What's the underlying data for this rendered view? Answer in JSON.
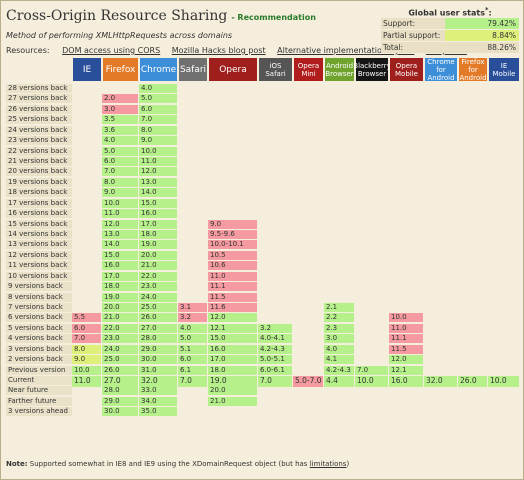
{
  "title": "Cross-Origin Resource Sharing",
  "status": "- Recommendation",
  "description": "Method of performing XMLHttpRequests across domains",
  "resources": {
    "label": "Resources:",
    "links": [
      "DOM access using CORS",
      "Mozilla Hacks blog post",
      "Alternative implementation by IE8",
      "has.js test"
    ]
  },
  "stats": {
    "title": "Global user stats",
    "title_sup": "*",
    "title_suffix": ":",
    "rows": [
      {
        "label": "Support:",
        "value": "79.42%"
      },
      {
        "label": "Partial support:",
        "value": "8.84%"
      },
      {
        "label": "Total:",
        "value": "88.26%"
      }
    ]
  },
  "colors": {
    "supported": "#b6f08a",
    "unsupported": "#f59aa0",
    "partial": "#dff07a",
    "ie": "#294e9a",
    "firefox": "#e27a28",
    "chrome": "#3c8ed8",
    "safari": "#707070",
    "opera": "#9e1f1c",
    "ios": "#555555",
    "opera_mini": "#b01d1d",
    "android": "#6fa32d",
    "blackberry": "#151515",
    "opera_mobile": "#9e1f1c",
    "chrome_android": "#3c8ed8",
    "firefox_android": "#e27a28",
    "ie_mobile": "#294e9a"
  },
  "browsers": [
    {
      "name": "IE",
      "icon": "ie"
    },
    {
      "name": "Firefox",
      "icon": "firefox"
    },
    {
      "name": "Chrome",
      "icon": "chrome"
    },
    {
      "name": "Safari",
      "icon": "safari"
    },
    {
      "name": "Opera",
      "icon": "opera"
    },
    {
      "name": "iOS Safari",
      "icon": "ios"
    },
    {
      "name": "Opera Mini",
      "icon": "opera_mini"
    },
    {
      "name": "Android Browser",
      "icon": "android"
    },
    {
      "name": "Blackberry Browser",
      "icon": "blackberry"
    },
    {
      "name": "Opera Mobile",
      "icon": "opera_mobile"
    },
    {
      "name": "Chrome for Android",
      "icon": "chrome_android"
    },
    {
      "name": "Firefox for Android",
      "icon": "firefox_android"
    },
    {
      "name": "IE Mobile",
      "icon": "ie_mobile"
    }
  ],
  "rows": [
    {
      "label": "28 versions back",
      "cells": [
        null,
        null,
        {
          "v": "4.0",
          "s": "y"
        }
      ]
    },
    {
      "label": "27 versions back",
      "cells": [
        null,
        {
          "v": "2.0",
          "s": "n"
        },
        {
          "v": "5.0",
          "s": "y"
        }
      ]
    },
    {
      "label": "26 versions back",
      "cells": [
        null,
        {
          "v": "3.0",
          "s": "n"
        },
        {
          "v": "6.0",
          "s": "y"
        }
      ]
    },
    {
      "label": "25 versions back",
      "cells": [
        null,
        {
          "v": "3.5",
          "s": "y"
        },
        {
          "v": "7.0",
          "s": "y"
        }
      ]
    },
    {
      "label": "24 versions back",
      "cells": [
        null,
        {
          "v": "3.6",
          "s": "y"
        },
        {
          "v": "8.0",
          "s": "y"
        }
      ]
    },
    {
      "label": "23 versions back",
      "cells": [
        null,
        {
          "v": "4.0",
          "s": "y"
        },
        {
          "v": "9.0",
          "s": "y"
        }
      ]
    },
    {
      "label": "22 versions back",
      "cells": [
        null,
        {
          "v": "5.0",
          "s": "y"
        },
        {
          "v": "10.0",
          "s": "y"
        }
      ]
    },
    {
      "label": "21 versions back",
      "cells": [
        null,
        {
          "v": "6.0",
          "s": "y"
        },
        {
          "v": "11.0",
          "s": "y"
        }
      ]
    },
    {
      "label": "20 versions back",
      "cells": [
        null,
        {
          "v": "7.0",
          "s": "y"
        },
        {
          "v": "12.0",
          "s": "y"
        }
      ]
    },
    {
      "label": "19 versions back",
      "cells": [
        null,
        {
          "v": "8.0",
          "s": "y"
        },
        {
          "v": "13.0",
          "s": "y"
        }
      ]
    },
    {
      "label": "18 versions back",
      "cells": [
        null,
        {
          "v": "9.0",
          "s": "y"
        },
        {
          "v": "14.0",
          "s": "y"
        }
      ]
    },
    {
      "label": "17 versions back",
      "cells": [
        null,
        {
          "v": "10.0",
          "s": "y"
        },
        {
          "v": "15.0",
          "s": "y"
        }
      ]
    },
    {
      "label": "16 versions back",
      "cells": [
        null,
        {
          "v": "11.0",
          "s": "y"
        },
        {
          "v": "16.0",
          "s": "y"
        }
      ]
    },
    {
      "label": "15 versions back",
      "cells": [
        null,
        {
          "v": "12.0",
          "s": "y"
        },
        {
          "v": "17.0",
          "s": "y"
        },
        null,
        {
          "v": "9.0",
          "s": "n"
        }
      ]
    },
    {
      "label": "14 versions back",
      "cells": [
        null,
        {
          "v": "13.0",
          "s": "y"
        },
        {
          "v": "18.0",
          "s": "y"
        },
        null,
        {
          "v": "9.5-9.6",
          "s": "n"
        }
      ]
    },
    {
      "label": "13 versions back",
      "cells": [
        null,
        {
          "v": "14.0",
          "s": "y"
        },
        {
          "v": "19.0",
          "s": "y"
        },
        null,
        {
          "v": "10.0-10.1",
          "s": "n"
        }
      ]
    },
    {
      "label": "12 versions back",
      "cells": [
        null,
        {
          "v": "15.0",
          "s": "y"
        },
        {
          "v": "20.0",
          "s": "y"
        },
        null,
        {
          "v": "10.5",
          "s": "n"
        }
      ]
    },
    {
      "label": "11 versions back",
      "cells": [
        null,
        {
          "v": "16.0",
          "s": "y"
        },
        {
          "v": "21.0",
          "s": "y"
        },
        null,
        {
          "v": "10.6",
          "s": "n"
        }
      ]
    },
    {
      "label": "10 versions back",
      "cells": [
        null,
        {
          "v": "17.0",
          "s": "y"
        },
        {
          "v": "22.0",
          "s": "y"
        },
        null,
        {
          "v": "11.0",
          "s": "n"
        }
      ]
    },
    {
      "label": "9 versions back",
      "cells": [
        null,
        {
          "v": "18.0",
          "s": "y"
        },
        {
          "v": "23.0",
          "s": "y"
        },
        null,
        {
          "v": "11.1",
          "s": "n"
        }
      ]
    },
    {
      "label": "8 versions back",
      "cells": [
        null,
        {
          "v": "19.0",
          "s": "y"
        },
        {
          "v": "24.0",
          "s": "y"
        },
        null,
        {
          "v": "11.5",
          "s": "n"
        }
      ]
    },
    {
      "label": "7 versions back",
      "cells": [
        null,
        {
          "v": "20.0",
          "s": "y"
        },
        {
          "v": "25.0",
          "s": "y"
        },
        {
          "v": "3.1",
          "s": "n"
        },
        {
          "v": "11.6",
          "s": "n"
        },
        null,
        null,
        {
          "v": "2.1",
          "s": "y"
        }
      ]
    },
    {
      "label": "6 versions back",
      "cells": [
        {
          "v": "5.5",
          "s": "n"
        },
        {
          "v": "21.0",
          "s": "y"
        },
        {
          "v": "26.0",
          "s": "y"
        },
        {
          "v": "3.2",
          "s": "n"
        },
        {
          "v": "12.0",
          "s": "y"
        },
        null,
        null,
        {
          "v": "2.2",
          "s": "y"
        },
        null,
        {
          "v": "10.0",
          "s": "n"
        }
      ]
    },
    {
      "label": "5 versions back",
      "cells": [
        {
          "v": "6.0",
          "s": "n"
        },
        {
          "v": "22.0",
          "s": "y"
        },
        {
          "v": "27.0",
          "s": "y"
        },
        {
          "v": "4.0",
          "s": "y"
        },
        {
          "v": "12.1",
          "s": "y"
        },
        {
          "v": "3.2",
          "s": "y"
        },
        null,
        {
          "v": "2.3",
          "s": "y"
        },
        null,
        {
          "v": "11.0",
          "s": "n"
        }
      ]
    },
    {
      "label": "4 versions back",
      "cells": [
        {
          "v": "7.0",
          "s": "n"
        },
        {
          "v": "23.0",
          "s": "y"
        },
        {
          "v": "28.0",
          "s": "y"
        },
        {
          "v": "5.0",
          "s": "y"
        },
        {
          "v": "15.0",
          "s": "y"
        },
        {
          "v": "4.0-4.1",
          "s": "y"
        },
        null,
        {
          "v": "3.0",
          "s": "y"
        },
        null,
        {
          "v": "11.1",
          "s": "n"
        }
      ]
    },
    {
      "label": "3 versions back",
      "cells": [
        {
          "v": "8.0",
          "s": "a"
        },
        {
          "v": "24.0",
          "s": "y"
        },
        {
          "v": "29.0",
          "s": "y"
        },
        {
          "v": "5.1",
          "s": "y"
        },
        {
          "v": "16.0",
          "s": "y"
        },
        {
          "v": "4.2-4.3",
          "s": "y"
        },
        null,
        {
          "v": "4.0",
          "s": "y"
        },
        null,
        {
          "v": "11.5",
          "s": "n"
        }
      ]
    },
    {
      "label": "2 versions back",
      "cells": [
        {
          "v": "9.0",
          "s": "a"
        },
        {
          "v": "25.0",
          "s": "y"
        },
        {
          "v": "30.0",
          "s": "y"
        },
        {
          "v": "6.0",
          "s": "y"
        },
        {
          "v": "17.0",
          "s": "y"
        },
        {
          "v": "5.0-5.1",
          "s": "y"
        },
        null,
        {
          "v": "4.1",
          "s": "y"
        },
        null,
        {
          "v": "12.0",
          "s": "y"
        }
      ]
    },
    {
      "label": "Previous version",
      "cells": [
        {
          "v": "10.0",
          "s": "y"
        },
        {
          "v": "26.0",
          "s": "y"
        },
        {
          "v": "31.0",
          "s": "y"
        },
        {
          "v": "6.1",
          "s": "y"
        },
        {
          "v": "18.0",
          "s": "y"
        },
        {
          "v": "6.0-6.1",
          "s": "y"
        },
        null,
        {
          "v": "4.2-4.3",
          "s": "y"
        },
        {
          "v": "7.0",
          "s": "y"
        },
        {
          "v": "12.1",
          "s": "y"
        }
      ]
    },
    {
      "label": "Current",
      "current": true,
      "cells": [
        {
          "v": "11.0",
          "s": "y"
        },
        {
          "v": "27.0",
          "s": "y"
        },
        {
          "v": "32.0",
          "s": "y"
        },
        {
          "v": "7.0",
          "s": "y"
        },
        {
          "v": "19.0",
          "s": "y"
        },
        {
          "v": "7.0",
          "s": "y"
        },
        {
          "v": "5.0-7.0",
          "s": "n"
        },
        {
          "v": "4.4",
          "s": "y"
        },
        {
          "v": "10.0",
          "s": "y"
        },
        {
          "v": "16.0",
          "s": "y"
        },
        {
          "v": "32.0",
          "s": "y"
        },
        {
          "v": "26.0",
          "s": "y"
        },
        {
          "v": "10.0",
          "s": "y"
        }
      ]
    },
    {
      "label": "Near future",
      "cells": [
        null,
        {
          "v": "28.0",
          "s": "y"
        },
        {
          "v": "33.0",
          "s": "y"
        },
        null,
        {
          "v": "20.0",
          "s": "y"
        }
      ]
    },
    {
      "label": "Farther future",
      "cells": [
        null,
        {
          "v": "29.0",
          "s": "y"
        },
        {
          "v": "34.0",
          "s": "y"
        },
        null,
        {
          "v": "21.0",
          "s": "y"
        }
      ]
    },
    {
      "label": "3 versions ahead",
      "cells": [
        null,
        {
          "v": "30.0",
          "s": "y"
        },
        {
          "v": "35.0",
          "s": "y"
        }
      ]
    }
  ],
  "note": {
    "label": "Note:",
    "text": " Supported somewhat in IE8 and IE9 using the XDomainRequest object (but has ",
    "link": "limitations",
    "end": ")"
  }
}
